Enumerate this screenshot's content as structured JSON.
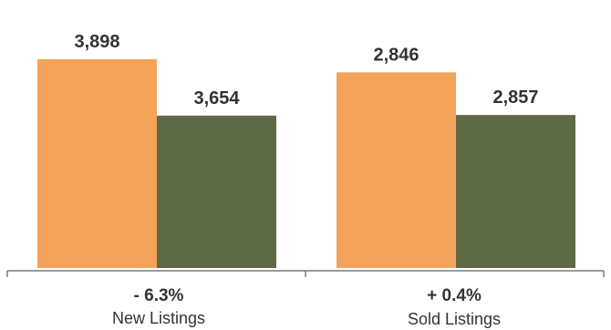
{
  "chart_data": {
    "type": "bar",
    "categories": [
      "New Listings",
      "Sold Listings"
    ],
    "changes": [
      "- 6.3%",
      "+ 0.4%"
    ],
    "series": [
      {
        "values": [
          3898,
          3654
        ],
        "color": "#F4A35A"
      },
      {
        "values": [
          2846,
          2857
        ],
        "color": "#5E6A45"
      }
    ],
    "value_labels": [
      [
        "3,898",
        "3,654"
      ],
      [
        "2,846",
        "2,857"
      ]
    ],
    "axis_color": "#7a7a7a",
    "grid": false,
    "legend": "none"
  }
}
